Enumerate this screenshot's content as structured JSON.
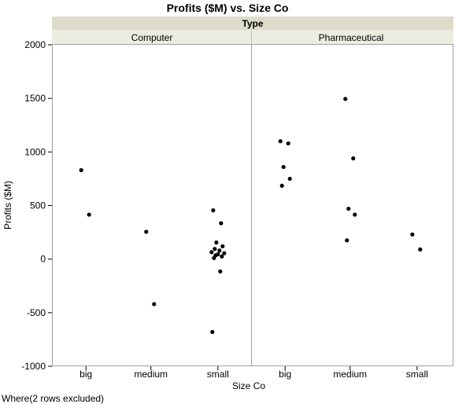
{
  "chart_data": {
    "type": "scatter",
    "title": "Profits ($M) vs. Size Co",
    "group_title": "Type",
    "xlabel": "Size Co",
    "ylabel": "Profits ($M)",
    "ylim": [
      -1000,
      2000
    ],
    "yticks": [
      -1000,
      -500,
      0,
      500,
      1000,
      1500,
      2000
    ],
    "categories": [
      "big",
      "medium",
      "small"
    ],
    "panels": [
      {
        "name": "Computer",
        "points": [
          {
            "x": "big",
            "y": 830
          },
          {
            "x": "big",
            "y": 415
          },
          {
            "x": "medium",
            "y": 255
          },
          {
            "x": "medium",
            "y": -420
          },
          {
            "x": "small",
            "y": 455
          },
          {
            "x": "small",
            "y": 335
          },
          {
            "x": "small",
            "y": 155
          },
          {
            "x": "small",
            "y": 120
          },
          {
            "x": "small",
            "y": 95
          },
          {
            "x": "small",
            "y": 80
          },
          {
            "x": "small",
            "y": 65
          },
          {
            "x": "small",
            "y": 55
          },
          {
            "x": "small",
            "y": 45
          },
          {
            "x": "small",
            "y": 35
          },
          {
            "x": "small",
            "y": 25
          },
          {
            "x": "small",
            "y": 10
          },
          {
            "x": "small",
            "y": -115
          },
          {
            "x": "small",
            "y": -680
          }
        ]
      },
      {
        "name": "Pharmaceutical",
        "points": [
          {
            "x": "big",
            "y": 1100
          },
          {
            "x": "big",
            "y": 1080
          },
          {
            "x": "big",
            "y": 860
          },
          {
            "x": "big",
            "y": 750
          },
          {
            "x": "big",
            "y": 685
          },
          {
            "x": "medium",
            "y": 1495
          },
          {
            "x": "medium",
            "y": 940
          },
          {
            "x": "medium",
            "y": 470
          },
          {
            "x": "medium",
            "y": 415
          },
          {
            "x": "medium",
            "y": 175
          },
          {
            "x": "small",
            "y": 230
          },
          {
            "x": "small",
            "y": 90
          }
        ]
      }
    ],
    "grid": false,
    "legend": "none"
  },
  "footer": "Where(2 rows excluded)",
  "colors": {
    "header_dark": "#dcdcc8",
    "header_light": "#ecece0",
    "point": "#000000",
    "frame": "#a0a0a0"
  }
}
